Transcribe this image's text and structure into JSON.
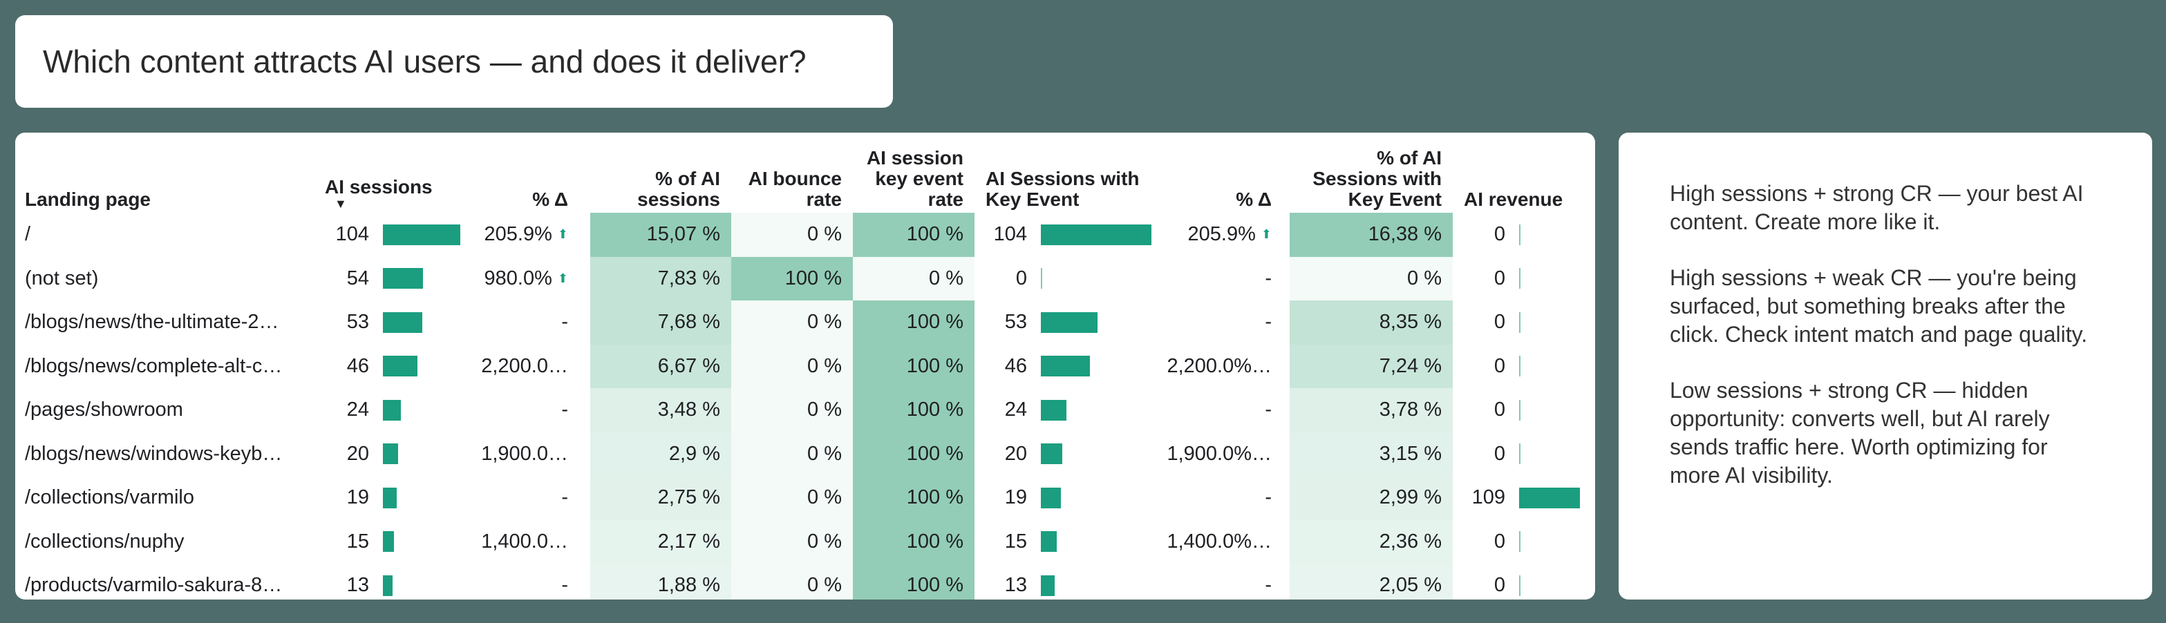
{
  "title": "Which content attracts AI users — and does it deliver?",
  "table": {
    "headers": [
      "Landing page",
      "AI sessions",
      "% Δ",
      "% of AI sessions",
      "AI bounce rate",
      "AI session key event rate",
      "AI Sessions with Key Event",
      "% Δ",
      "% of AI Sessions with Key Event",
      "AI revenue"
    ],
    "rows": [
      [
        "/",
        104,
        "205.9%",
        "15,07 %",
        "0 %",
        "100 %",
        104,
        "205.9%",
        "16,38 %",
        0
      ],
      [
        "(not set)",
        54,
        "980.0%",
        "7,83 %",
        "100 %",
        "0 %",
        0,
        "-",
        "0 %",
        0
      ],
      [
        "/blogs/news/the-ultimate-2…",
        53,
        "-",
        "7,68 %",
        "0 %",
        "100 %",
        53,
        "-",
        "8,35 %",
        0
      ],
      [
        "/blogs/news/complete-alt-c…",
        46,
        "2,200.0…",
        "6,67 %",
        "0 %",
        "100 %",
        46,
        "2,200.0%…",
        "7,24 %",
        0
      ],
      [
        "/pages/showroom",
        24,
        "-",
        "3,48 %",
        "0 %",
        "100 %",
        24,
        "-",
        "3,78 %",
        0
      ],
      [
        "/blogs/news/windows-keyb…",
        20,
        "1,900.0…",
        "2,9 %",
        "0 %",
        "100 %",
        20,
        "1,900.0%…",
        "3,15 %",
        0
      ],
      [
        "/collections/varmilo",
        19,
        "-",
        "2,75 %",
        "0 %",
        "100 %",
        19,
        "-",
        "2,99 %",
        109
      ],
      [
        "/collections/nuphy",
        15,
        "1,400.0…",
        "2,17 %",
        "0 %",
        "100 %",
        15,
        "1,400.0%…",
        "2,36 %",
        0
      ],
      [
        "/products/varmilo-sakura-8…",
        13,
        "-",
        "1,88 %",
        "0 %",
        "100 %",
        13,
        "-",
        "2,05 %",
        0
      ]
    ]
  },
  "notes": [
    "High sessions + strong CR — your best AI content. Create more like it.",
    "High sessions + weak CR — you're being surfaced, but something breaks after the click. Check intent match and page quality.",
    "Low sessions + strong CR — hidden opportunity: converts well, but AI rarely sends traffic here. Worth optimizing for more AI visibility."
  ]
}
